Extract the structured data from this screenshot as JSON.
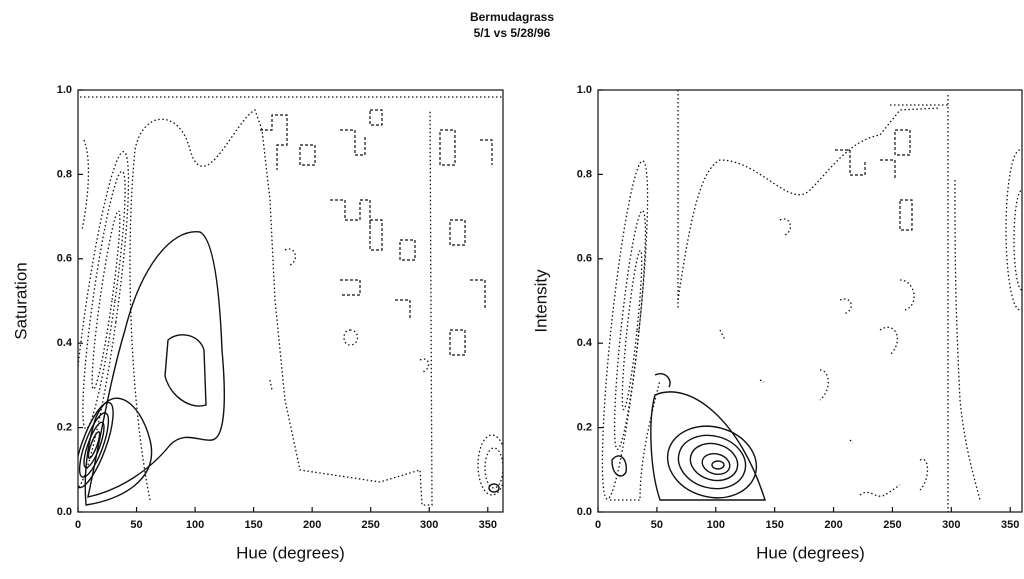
{
  "title": "Bermudagrass",
  "subtitle": "5/1 vs 5/28/96",
  "chart_data": [
    {
      "type": "contour",
      "xlabel": "Hue (degrees)",
      "ylabel": "Saturation",
      "xlim": [
        0,
        363
      ],
      "ylim": [
        0,
        1
      ],
      "xticks": [
        0,
        50,
        100,
        150,
        200,
        250,
        300,
        350
      ],
      "yticks": [
        {
          "value": 0,
          "label": "0.0"
        },
        0.2,
        0.4,
        0.6,
        0.8,
        {
          "value": 1,
          "label": "1.0"
        }
      ]
    },
    {
      "type": "contour",
      "xlabel": "Hue (degrees)",
      "ylabel": "Intensity",
      "xlim": [
        0,
        360
      ],
      "ylim": [
        0,
        1
      ],
      "xticks": [
        0,
        50,
        100,
        150,
        200,
        250,
        300,
        350
      ],
      "yticks": [
        {
          "value": 0,
          "label": "0.0"
        },
        0.2,
        0.4,
        0.6,
        0.8,
        {
          "value": 1,
          "label": "1.0"
        }
      ]
    }
  ]
}
